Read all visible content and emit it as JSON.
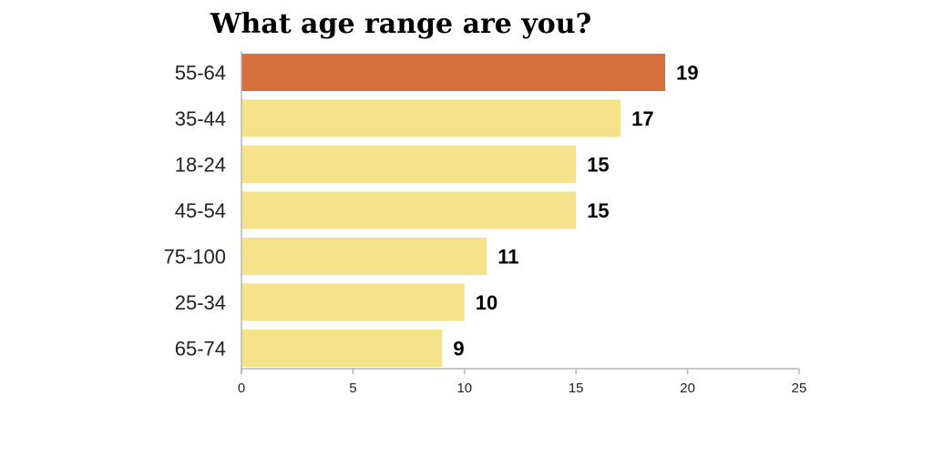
{
  "chart_data": {
    "type": "bar",
    "orientation": "horizontal",
    "title": "What age range are you?",
    "categories": [
      "55-64",
      "35-44",
      "18-24",
      "45-54",
      "75-100",
      "25-34",
      "65-74"
    ],
    "values": [
      19,
      17,
      15,
      15,
      11,
      10,
      9
    ],
    "highlight_index": 0,
    "xlim": [
      0,
      25
    ],
    "xticks": [
      0,
      5,
      10,
      15,
      20,
      25
    ],
    "grid": false,
    "legend": "none",
    "colors": {
      "highlight": "#d4703c",
      "bar": "#f5e28a",
      "axis": "#b5b5b5"
    }
  }
}
